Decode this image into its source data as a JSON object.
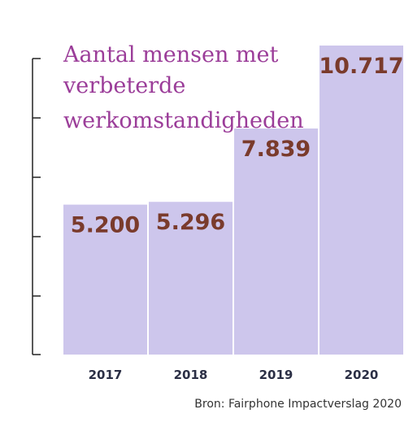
{
  "chart_data": {
    "type": "bar",
    "title_lines": [
      "Aantal mensen met",
      "verbeterde",
      "werkomstandigheden"
    ],
    "categories": [
      "2017",
      "2018",
      "2019",
      "2020"
    ],
    "values": [
      5200,
      5296,
      7839,
      10717
    ],
    "value_labels": [
      "5.200",
      "5.296",
      "7.839",
      "10.717"
    ],
    "ylim": [
      0,
      12000
    ],
    "grid": false,
    "bar_color": "#cdc6ec",
    "value_label_color": "#7a3b2c",
    "title_color": "#9b3d99"
  },
  "source": "Bron: Fairphone Impactverslag 2020"
}
